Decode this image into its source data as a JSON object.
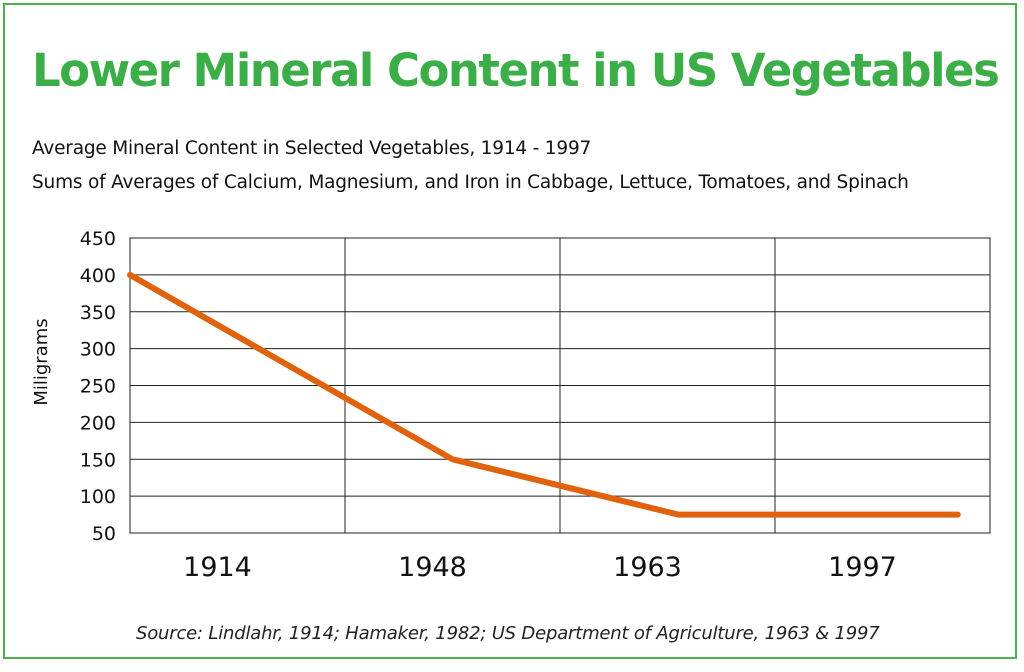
{
  "header": {
    "title": "Lower Mineral Content in US Vegetables",
    "subtitle_1": "Average Mineral Content in Selected Vegetables, 1914 - 1997",
    "subtitle_2": "Sums of Averages of Calcium, Magnesium, and Iron in Cabbage, Lettuce, Tomatoes, and Spinach"
  },
  "footer": {
    "source": "Source: Lindlahr, 1914; Hamaker, 1982; US Department of Agriculture, 1963 & 1997"
  },
  "colors": {
    "title": "#3cae47",
    "frame": "#4caf50",
    "line": "#e0620d",
    "grid": "#222222"
  },
  "chart_data": {
    "type": "line",
    "categories": [
      "1914",
      "1948",
      "1963",
      "1997"
    ],
    "series": [
      {
        "values": [
          400,
          150,
          75,
          75
        ]
      }
    ],
    "ylabel": "Miligrams",
    "xlabel": "",
    "ylim": [
      50,
      450
    ],
    "yticks": [
      450,
      400,
      350,
      300,
      250,
      200,
      150,
      100,
      50
    ],
    "grid": true,
    "legend": "none"
  }
}
